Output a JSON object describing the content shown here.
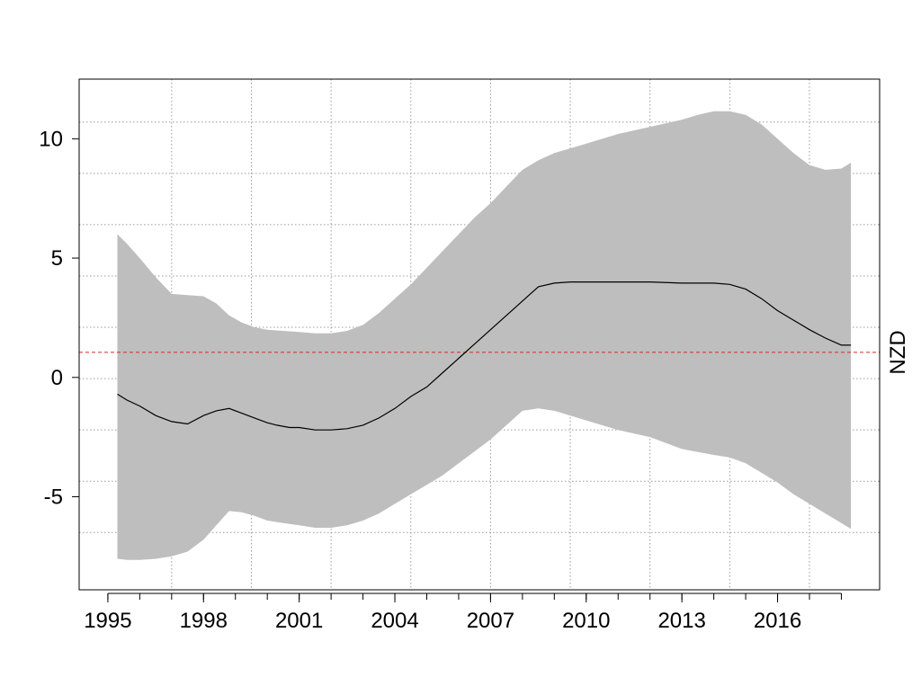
{
  "chart_data": {
    "type": "area",
    "title": "",
    "xlabel": "",
    "ylabel": "NZD",
    "xlim": [
      1994.1,
      2019.2
    ],
    "ylim": [
      -8.9,
      12.5
    ],
    "grid": true,
    "x_ticks_labeled": [
      "1995",
      "1998",
      "2001",
      "2004",
      "2007",
      "2010",
      "2013",
      "2016"
    ],
    "x_minor_ticks": [
      1995,
      1996,
      1997,
      1998,
      1999,
      2000,
      2001,
      2002,
      2003,
      2004,
      2005,
      2006,
      2007,
      2008,
      2009,
      2010,
      2011,
      2012,
      2013,
      2014,
      2015,
      2016,
      2017,
      2018
    ],
    "y_ticks": [
      -5,
      0,
      5,
      10
    ],
    "y_tick_labels": [
      "-5",
      "0",
      "5",
      "10"
    ],
    "x_grid": [
      1997,
      1999.5,
      2002,
      2004.5,
      2007,
      2009.5,
      2012,
      2014.5,
      2017
    ],
    "y_grid": [
      -6.5,
      -4.35,
      -2.2,
      -0.05,
      2.1,
      4.25,
      6.4,
      8.55,
      10.7
    ],
    "reference_line": {
      "y": 1.05,
      "color": "#d62728",
      "dash": true
    },
    "band_color": "#bebebe",
    "line_color": "#000000",
    "series": [
      {
        "role": "estimate",
        "x": [
          1995.3,
          1995.6,
          1996.0,
          1996.5,
          1997.0,
          1997.5,
          1998.0,
          1998.4,
          1998.8,
          1999.2,
          1999.6,
          2000.0,
          2000.3,
          2000.7,
          2001.0,
          2001.5,
          2002.0,
          2002.5,
          2003.0,
          2003.5,
          2004.0,
          2004.5,
          2005.0,
          2005.5,
          2006.0,
          2006.5,
          2007.0,
          2007.5,
          2008.0,
          2008.5,
          2009.0,
          2009.5,
          2010.0,
          2011.0,
          2012.0,
          2013.0,
          2014.0,
          2014.5,
          2015.0,
          2015.5,
          2016.0,
          2016.5,
          2017.0,
          2017.5,
          2018.0,
          2018.3
        ],
        "y": [
          -0.7,
          -0.95,
          -1.2,
          -1.6,
          -1.85,
          -1.95,
          -1.6,
          -1.4,
          -1.3,
          -1.5,
          -1.7,
          -1.9,
          -2.0,
          -2.1,
          -2.1,
          -2.2,
          -2.2,
          -2.15,
          -2.0,
          -1.7,
          -1.3,
          -0.8,
          -0.4,
          0.2,
          0.8,
          1.4,
          2.0,
          2.6,
          3.2,
          3.8,
          3.95,
          4.0,
          4.0,
          4.0,
          4.0,
          3.95,
          3.95,
          3.9,
          3.7,
          3.3,
          2.8,
          2.4,
          2.0,
          1.65,
          1.35,
          1.35
        ]
      },
      {
        "role": "upper",
        "x": [
          1995.3,
          1995.6,
          1996.0,
          1996.5,
          1997.0,
          1997.5,
          1998.0,
          1998.4,
          1998.8,
          1999.2,
          1999.6,
          2000.0,
          2000.5,
          2001.0,
          2001.5,
          2002.0,
          2002.5,
          2003.0,
          2003.5,
          2004.0,
          2004.5,
          2005.0,
          2005.5,
          2006.0,
          2006.5,
          2007.0,
          2007.5,
          2008.0,
          2008.5,
          2009.0,
          2009.5,
          2010.0,
          2011.0,
          2012.0,
          2013.0,
          2013.5,
          2014.0,
          2014.5,
          2015.0,
          2015.5,
          2016.0,
          2016.5,
          2017.0,
          2017.5,
          2018.0,
          2018.3
        ],
        "y": [
          6.0,
          5.6,
          5.0,
          4.2,
          3.5,
          3.45,
          3.4,
          3.1,
          2.6,
          2.3,
          2.1,
          2.0,
          1.95,
          1.9,
          1.85,
          1.85,
          1.95,
          2.2,
          2.7,
          3.3,
          3.9,
          4.6,
          5.3,
          6.0,
          6.7,
          7.3,
          8.0,
          8.7,
          9.1,
          9.4,
          9.6,
          9.8,
          10.2,
          10.5,
          10.8,
          11.0,
          11.15,
          11.15,
          11.0,
          10.6,
          10.0,
          9.4,
          8.9,
          8.7,
          8.75,
          9.0
        ]
      },
      {
        "role": "lower",
        "x": [
          1995.3,
          1995.6,
          1996.0,
          1996.5,
          1997.0,
          1997.5,
          1998.0,
          1998.4,
          1998.8,
          1999.2,
          1999.6,
          2000.0,
          2000.5,
          2001.0,
          2001.5,
          2002.0,
          2002.5,
          2003.0,
          2003.5,
          2004.0,
          2004.5,
          2005.0,
          2005.5,
          2006.0,
          2006.5,
          2007.0,
          2007.5,
          2008.0,
          2008.5,
          2009.0,
          2009.5,
          2010.0,
          2011.0,
          2012.0,
          2013.0,
          2014.0,
          2014.5,
          2015.0,
          2015.5,
          2016.0,
          2016.5,
          2017.0,
          2017.5,
          2018.0,
          2018.3
        ],
        "y": [
          -7.6,
          -7.65,
          -7.65,
          -7.6,
          -7.5,
          -7.3,
          -6.8,
          -6.2,
          -5.6,
          -5.65,
          -5.8,
          -6.0,
          -6.1,
          -6.2,
          -6.3,
          -6.3,
          -6.2,
          -6.0,
          -5.7,
          -5.3,
          -4.9,
          -4.5,
          -4.1,
          -3.6,
          -3.1,
          -2.6,
          -2.0,
          -1.4,
          -1.3,
          -1.4,
          -1.6,
          -1.8,
          -2.2,
          -2.5,
          -3.0,
          -3.25,
          -3.35,
          -3.6,
          -4.0,
          -4.4,
          -4.9,
          -5.3,
          -5.7,
          -6.1,
          -6.35
        ]
      }
    ]
  }
}
